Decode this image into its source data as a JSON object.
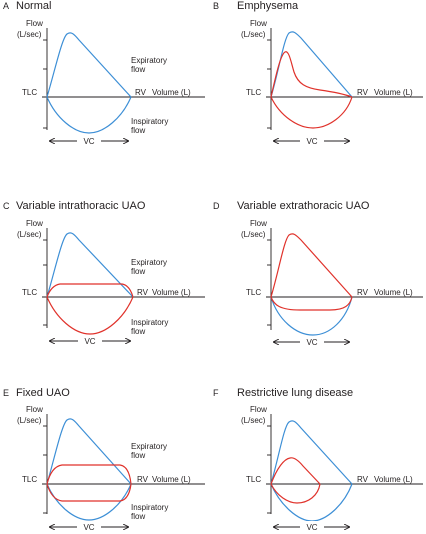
{
  "colors": {
    "normal_curve": "#3d8fd6",
    "disease_curve": "#e0322b",
    "axes": "#231f20"
  },
  "panels": [
    {
      "letter": "A",
      "title": "Normal",
      "flow_label_1": "Flow",
      "flow_label_2": "(L/sec)",
      "tlc": "TLC",
      "rv": "RV",
      "volume": "Volume (L)",
      "exp_1": "Expiratory",
      "exp_2": "flow",
      "insp_1": "Inspiratory",
      "insp_2": "flow",
      "vc": "VC"
    },
    {
      "letter": "B",
      "title": "Emphysema",
      "flow_label_1": "Flow",
      "flow_label_2": "(L/sec)",
      "tlc": "TLC",
      "rv": "RV",
      "volume": "Volume (L)",
      "vc": "VC"
    },
    {
      "letter": "C",
      "title": "Variable intrathoracic UAO",
      "flow_label_1": "Flow",
      "flow_label_2": "(L/sec)",
      "tlc": "TLC",
      "rv": "RV",
      "volume": "Volume (L)",
      "exp_1": "Expiratory",
      "exp_2": "flow",
      "insp_1": "Inspiratory",
      "insp_2": "flow",
      "vc": "VC"
    },
    {
      "letter": "D",
      "title": "Variable extrathoracic UAO",
      "flow_label_1": "Flow",
      "flow_label_2": "(L/sec)",
      "tlc": "TLC",
      "rv": "RV",
      "volume": "Volume (L)",
      "vc": "VC"
    },
    {
      "letter": "E",
      "title": "Fixed UAO",
      "flow_label_1": "Flow",
      "flow_label_2": "(L/sec)",
      "tlc": "TLC",
      "rv": "RV",
      "volume": "Volume (L)",
      "exp_1": "Expiratory",
      "exp_2": "flow",
      "insp_1": "Inspiratory",
      "insp_2": "flow",
      "vc": "VC"
    },
    {
      "letter": "F",
      "title": "Restrictive lung disease",
      "flow_label_1": "Flow",
      "flow_label_2": "(L/sec)",
      "tlc": "TLC",
      "rv": "RV",
      "volume": "Volume (L)",
      "vc": "VC"
    }
  ]
}
